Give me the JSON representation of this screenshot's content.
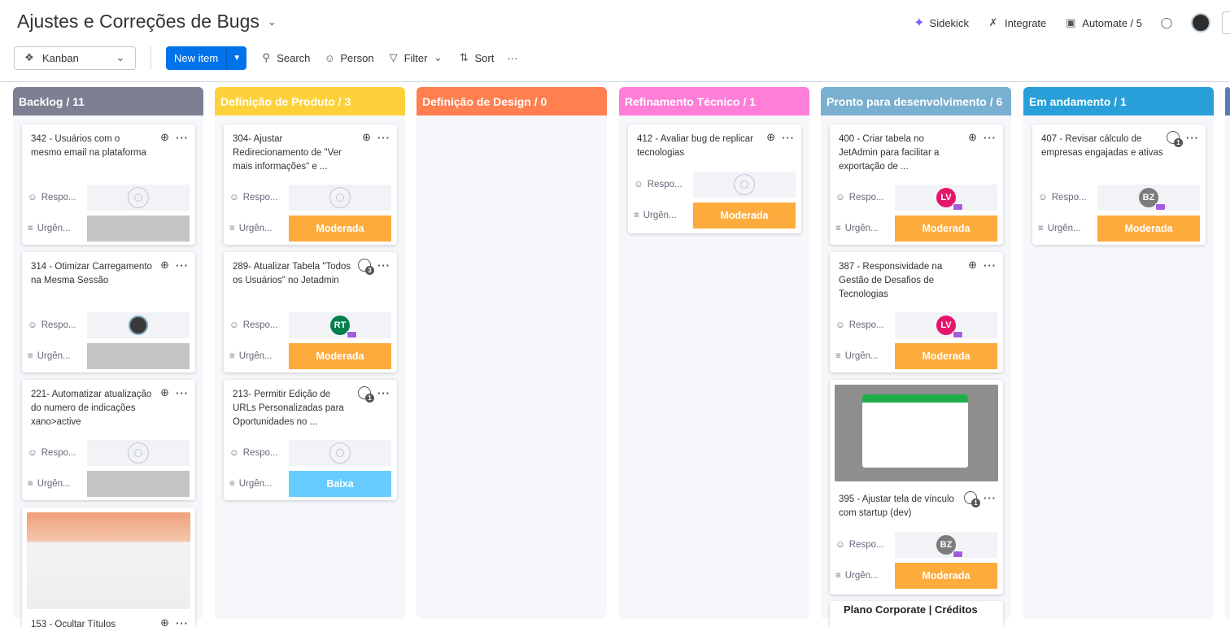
{
  "header": {
    "title": "Ajustes e Correções de Bugs",
    "sidekick": "Sidekick",
    "integrate": "Integrate",
    "automate": "Automate / 5"
  },
  "toolbar": {
    "view": "Kanban",
    "new_item": "New item",
    "search": "Search",
    "person": "Person",
    "filter": "Filter",
    "sort": "Sort",
    "more": "···"
  },
  "labels": {
    "person": "Respo...",
    "urgency": "Urgên..."
  },
  "colors": {
    "backlog": "#7d8092",
    "produto": "#fdd13a",
    "design": "#ff7f50",
    "refinamento": "#ff7ed8",
    "pronto": "#79afd0",
    "andamento": "#289fd8",
    "moderada": "#fdab3d",
    "baixa": "#579bfc",
    "empty_status": "#c4c4c4",
    "lv": "#e4166c",
    "rt": "#037f4c",
    "bz": "#7c7c7c"
  },
  "columns": [
    {
      "name": "Backlog / 11"
    },
    {
      "name": "Definição de Produto / 3"
    },
    {
      "name": "Definição de Design / 0"
    },
    {
      "name": "Refinamento Técnico / 1"
    },
    {
      "name": "Pronto para desenvolvimento / 6"
    },
    {
      "name": "Em andamento / 1"
    }
  ],
  "cards": {
    "c342": {
      "title": "342 - Usuários com o mesmo email na plataforma"
    },
    "c314": {
      "title": "314 - Otimizar Carregamento na Mesma Sessão"
    },
    "c221": {
      "title": "221- Automatizar atualização do numero de indicações xano>active"
    },
    "c153": {
      "title": "153 - Ocultar Títulos"
    },
    "c304": {
      "title": "304- Ajustar Redirecionamento de \"Ver mais informações\" e ..."
    },
    "c289": {
      "title": "289- Atualizar Tabela \"Todos os Usuários\" no Jetadmin",
      "comments": "3",
      "person": "RT",
      "urgency": "Moderada"
    },
    "c213": {
      "title": "213- Permitir Edição de URLs Personalizadas para Oportunidades no ...",
      "comments": "1",
      "urgency": "Baixa"
    },
    "c412": {
      "title": "412 - Avaliar bug de replicar tecnologias",
      "urgency": "Moderada"
    },
    "c400": {
      "title": "400 - Criar tabela no JetAdmin para facilitar a exportação de ...",
      "person": "LV",
      "urgency": "Moderada"
    },
    "c387": {
      "title": "387 - Responsividade na Gestão de Desafios de Tecnologias",
      "person": "LV",
      "urgency": "Moderada"
    },
    "c395": {
      "title": "395 - Ajustar tela de vínculo com startup (dev)",
      "comments": "1",
      "person": "BZ",
      "urgency": "Moderada"
    },
    "c_plano": {
      "title": "Plano Corporate | Créditos"
    },
    "c407": {
      "title": "407 - Revisar cálculo de empresas engajadas e ativas",
      "comments": "1",
      "person": "BZ",
      "urgency": "Moderada"
    },
    "c304_urgency": "Moderada"
  },
  "icons": [
    "sparkle-icon",
    "plug-icon",
    "robot-icon",
    "chat-icon",
    "pin-icon",
    "search-icon",
    "person-icon",
    "filter-icon",
    "sort-icon",
    "add-update-icon",
    "comment-icon",
    "more-icon"
  ]
}
